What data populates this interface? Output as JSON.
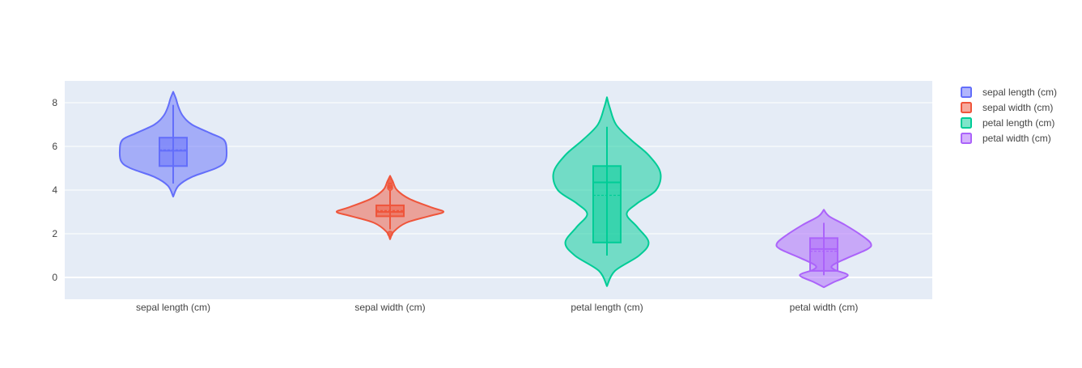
{
  "chart_data": {
    "type": "violin",
    "title": "",
    "xlabel": "",
    "ylabel": "",
    "ylim": [
      -1.0,
      9.0
    ],
    "y_ticks": [
      0,
      2,
      4,
      6,
      8
    ],
    "grid": true,
    "legend_position": "top-right",
    "colors": {
      "plot_background": "#e5ecf6",
      "grid": "#ffffff",
      "paper": "#ffffff"
    },
    "series": [
      {
        "name": "sepal length (cm)",
        "color": "#636efa",
        "range": [
          3.7,
          8.5
        ],
        "whiskers": [
          4.3,
          7.9
        ],
        "q1": 5.1,
        "median": 5.8,
        "q3": 6.4,
        "mean": 5.84,
        "outliers": [],
        "density": [
          [
            3.7,
            0.0
          ],
          [
            4.2,
            0.1
          ],
          [
            4.6,
            0.35
          ],
          [
            5.0,
            0.8
          ],
          [
            5.3,
            0.97
          ],
          [
            5.8,
            1.0
          ],
          [
            6.3,
            0.95
          ],
          [
            6.6,
            0.7
          ],
          [
            7.0,
            0.35
          ],
          [
            7.4,
            0.18
          ],
          [
            7.8,
            0.1
          ],
          [
            8.2,
            0.05
          ],
          [
            8.5,
            0.0
          ]
        ]
      },
      {
        "name": "sepal width (cm)",
        "color": "#ef553b",
        "range": [
          1.75,
          4.65
        ],
        "whiskers": [
          2.2,
          4.0
        ],
        "q1": 2.8,
        "median": 3.0,
        "q3": 3.3,
        "mean": 3.06,
        "outliers": [
          4.1,
          4.2,
          4.4,
          2.0
        ],
        "density": [
          [
            1.75,
            0.0
          ],
          [
            2.1,
            0.07
          ],
          [
            2.5,
            0.3
          ],
          [
            2.8,
            0.72
          ],
          [
            3.0,
            1.0
          ],
          [
            3.2,
            0.78
          ],
          [
            3.6,
            0.36
          ],
          [
            4.0,
            0.13
          ],
          [
            4.4,
            0.05
          ],
          [
            4.65,
            0.0
          ]
        ]
      },
      {
        "name": "petal length (cm)",
        "color": "#00cc96",
        "range": [
          -0.4,
          8.25
        ],
        "whiskers": [
          1.0,
          6.9
        ],
        "q1": 1.6,
        "median": 4.35,
        "q3": 5.1,
        "mean": 3.76,
        "outliers": [],
        "density": [
          [
            -0.4,
            0.0
          ],
          [
            0.3,
            0.15
          ],
          [
            1.0,
            0.6
          ],
          [
            1.6,
            0.78
          ],
          [
            2.3,
            0.57
          ],
          [
            2.9,
            0.37
          ],
          [
            3.4,
            0.57
          ],
          [
            4.0,
            0.92
          ],
          [
            4.8,
            1.0
          ],
          [
            5.6,
            0.78
          ],
          [
            6.3,
            0.45
          ],
          [
            7.0,
            0.17
          ],
          [
            7.8,
            0.05
          ],
          [
            8.25,
            0.0
          ]
        ]
      },
      {
        "name": "petal width (cm)",
        "color": "#ab63fa",
        "range": [
          -0.45,
          3.1
        ],
        "whiskers": [
          0.1,
          2.5
        ],
        "q1": 0.3,
        "median": 1.3,
        "q3": 1.8,
        "mean": 1.2,
        "outliers": [],
        "density": [
          [
            -0.45,
            0.0
          ],
          [
            -0.2,
            0.2
          ],
          [
            0.1,
            0.45
          ],
          [
            0.35,
            0.2
          ],
          [
            0.55,
            0.16
          ],
          [
            0.9,
            0.45
          ],
          [
            1.3,
            0.82
          ],
          [
            1.55,
            0.88
          ],
          [
            1.9,
            0.72
          ],
          [
            2.4,
            0.4
          ],
          [
            2.8,
            0.1
          ],
          [
            3.1,
            0.0
          ]
        ]
      }
    ]
  }
}
